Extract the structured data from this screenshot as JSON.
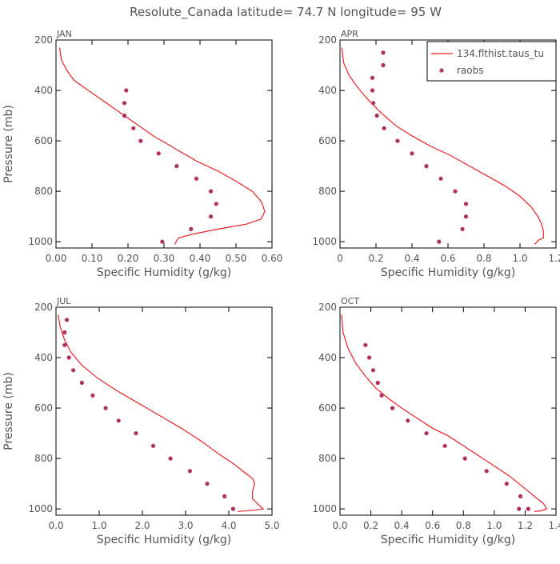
{
  "figure_title": "Resolute_Canada  latitude= 74.7 N longitude= 95 W",
  "colors": {
    "model": "#ee2222",
    "obs": "#b03060",
    "frame": "#000000",
    "text": "#555555"
  },
  "legend": {
    "placement": "top-right",
    "model_label": "134.flthist.taus_tu",
    "obs_label": "raobs"
  },
  "chart_data": [
    {
      "type": "line",
      "panel": "JAN",
      "xlabel": "Specific Humidity (g/kg)",
      "ylabel": "Pressure (mb)",
      "xlim": [
        0,
        0.6
      ],
      "xticks": [
        "0.00",
        "0.10",
        "0.20",
        "0.30",
        "0.40",
        "0.50",
        "0.60"
      ],
      "ylim": [
        200,
        1025
      ],
      "yticks": [
        "200",
        "400",
        "600",
        "800",
        "1000"
      ],
      "y_inverted": true,
      "model": {
        "x": [
          0.01,
          0.015,
          0.03,
          0.05,
          0.08,
          0.12,
          0.17,
          0.22,
          0.27,
          0.33,
          0.39,
          0.45,
          0.5,
          0.545,
          0.57,
          0.58,
          0.57,
          0.53,
          0.45,
          0.38,
          0.34,
          0.33
        ],
        "y": [
          230,
          280,
          320,
          360,
          390,
          430,
          480,
          530,
          580,
          630,
          680,
          720,
          760,
          800,
          840,
          880,
          910,
          930,
          950,
          970,
          985,
          1010
        ]
      },
      "obs": {
        "x": [
          0.195,
          0.19,
          0.19,
          0.215,
          0.235,
          0.285,
          0.335,
          0.39,
          0.43,
          0.445,
          0.43,
          0.375,
          0.295
        ],
        "y": [
          400,
          450,
          500,
          550,
          600,
          650,
          700,
          750,
          800,
          850,
          900,
          950,
          1000
        ]
      }
    },
    {
      "type": "line",
      "panel": "APR",
      "xlabel": "Specific Humidity (g/kg)",
      "ylabel": "",
      "xlim": [
        0,
        1.2
      ],
      "xticks": [
        "0",
        "0.2",
        "0.4",
        "0.6",
        "0.8",
        "1.0",
        "1.2"
      ],
      "ylim": [
        200,
        1025
      ],
      "yticks": [
        "200",
        "400",
        "600",
        "800",
        "1000"
      ],
      "y_inverted": true,
      "model": {
        "x": [
          0.01,
          0.02,
          0.05,
          0.1,
          0.16,
          0.23,
          0.31,
          0.4,
          0.5,
          0.62,
          0.72,
          0.82,
          0.92,
          1.0,
          1.06,
          1.1,
          1.12,
          1.13,
          1.13,
          1.1,
          1.09,
          1.08
        ],
        "y": [
          230,
          290,
          340,
          390,
          440,
          490,
          540,
          580,
          620,
          660,
          700,
          740,
          780,
          820,
          860,
          900,
          930,
          960,
          985,
          995,
          1005,
          1010
        ]
      },
      "obs": {
        "x": [
          0.24,
          0.24,
          0.18,
          0.18,
          0.185,
          0.205,
          0.245,
          0.32,
          0.4,
          0.48,
          0.56,
          0.64,
          0.7,
          0.7,
          0.68,
          0.55
        ],
        "y": [
          250,
          300,
          350,
          400,
          450,
          500,
          550,
          600,
          650,
          700,
          750,
          800,
          850,
          900,
          950,
          1000
        ]
      }
    },
    {
      "type": "line",
      "panel": "JUL",
      "xlabel": "Specific Humidity (g/kg)",
      "ylabel": "Pressure (mb)",
      "xlim": [
        0,
        5
      ],
      "xticks": [
        "0.0",
        "1.0",
        "2.0",
        "3.0",
        "4.0",
        "5.0"
      ],
      "ylim": [
        200,
        1025
      ],
      "yticks": [
        "200",
        "400",
        "600",
        "800",
        "1000"
      ],
      "y_inverted": true,
      "model": {
        "x": [
          0.05,
          0.1,
          0.2,
          0.35,
          0.6,
          0.95,
          1.4,
          1.9,
          2.4,
          2.9,
          3.35,
          3.75,
          4.1,
          4.4,
          4.55,
          4.6,
          4.55,
          4.55,
          4.7,
          4.8,
          4.6,
          4.2
        ],
        "y": [
          230,
          280,
          330,
          380,
          430,
          480,
          530,
          580,
          630,
          680,
          730,
          780,
          820,
          860,
          880,
          900,
          930,
          960,
          985,
          1000,
          1005,
          1010
        ]
      },
      "obs": {
        "x": [
          0.25,
          0.2,
          0.2,
          0.3,
          0.4,
          0.6,
          0.85,
          1.15,
          1.45,
          1.85,
          2.25,
          2.65,
          3.1,
          3.5,
          3.9,
          4.1
        ],
        "y": [
          250,
          300,
          350,
          400,
          450,
          500,
          550,
          600,
          650,
          700,
          750,
          800,
          850,
          900,
          950,
          1000
        ]
      }
    },
    {
      "type": "line",
      "panel": "OCT",
      "xlabel": "Specific Humidity (g/kg)",
      "ylabel": "",
      "xlim": [
        0,
        1.4
      ],
      "xticks": [
        "0.0",
        "0.2",
        "0.4",
        "0.6",
        "0.8",
        "1.0",
        "1.2",
        "1.4"
      ],
      "ylim": [
        200,
        1025
      ],
      "yticks": [
        "200",
        "400",
        "600",
        "800",
        "1000"
      ],
      "y_inverted": true,
      "model": {
        "x": [
          0.01,
          0.02,
          0.05,
          0.1,
          0.16,
          0.23,
          0.31,
          0.4,
          0.5,
          0.6,
          0.7,
          0.8,
          0.9,
          1.0,
          1.1,
          1.18,
          1.24,
          1.28,
          1.32,
          1.34,
          1.3,
          1.26
        ],
        "y": [
          230,
          300,
          360,
          420,
          470,
          520,
          560,
          600,
          640,
          680,
          710,
          750,
          790,
          830,
          870,
          910,
          940,
          960,
          980,
          1000,
          1008,
          1010
        ]
      },
      "obs": {
        "x": [
          0.165,
          0.19,
          0.215,
          0.245,
          0.27,
          0.34,
          0.44,
          0.56,
          0.68,
          0.81,
          0.95,
          1.08,
          1.17,
          1.22,
          1.16
        ],
        "y": [
          350,
          400,
          450,
          500,
          550,
          600,
          650,
          700,
          750,
          800,
          850,
          900,
          950,
          1000,
          1000
        ]
      }
    }
  ]
}
